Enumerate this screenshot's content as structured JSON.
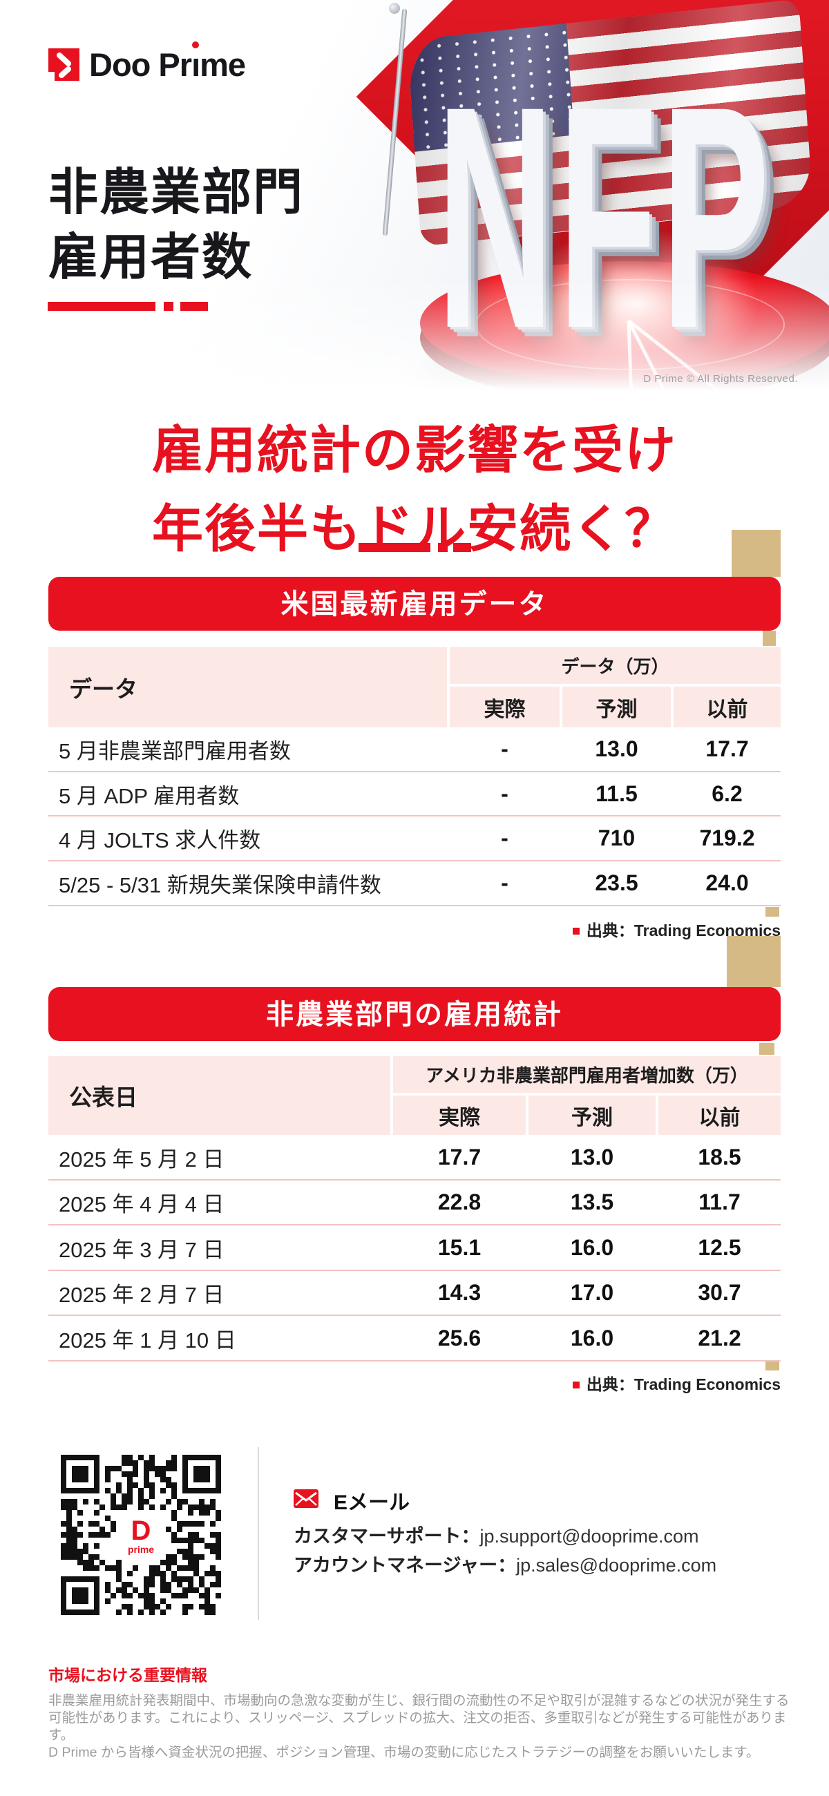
{
  "colors": {
    "accent_red": "#e8111f",
    "gold": "#d6ba85",
    "pink": "#fce8e5"
  },
  "logo": {
    "name": "Doo Prime",
    "text_pre": "Doo Pr",
    "text_i": "ı",
    "text_post": "me"
  },
  "hero": {
    "title_line1": "非農業部門",
    "title_line2": "雇用者数",
    "nfp": "NFP",
    "copyright": "D Prime © All Rights Reserved."
  },
  "headline": {
    "line1": "雇用統計の影響を受け",
    "line2": "年後半もドル安続く？"
  },
  "section1": {
    "banner": "米国最新雇用データ",
    "table": {
      "row_header": "データ",
      "col_group_label": "データ（万）",
      "columns": [
        "実際",
        "予測",
        "以前"
      ],
      "rows": [
        {
          "label": "5 月非農業部門雇用者数",
          "actual": "-",
          "forecast": "13.0",
          "previous": "17.7"
        },
        {
          "label": "5 月 ADP 雇用者数",
          "actual": "-",
          "forecast": "11.5",
          "previous": "6.2"
        },
        {
          "label": "4 月 JOLTS 求人件数",
          "actual": "-",
          "forecast": "710",
          "previous": "719.2"
        },
        {
          "label": "5/25 - 5/31 新規失業保険申請件数",
          "actual": "-",
          "forecast": "23.5",
          "previous": "24.0"
        }
      ]
    },
    "source": "出典：Trading Economics"
  },
  "section2": {
    "banner": "非農業部門の雇用統計",
    "table": {
      "row_header": "公表日",
      "col_group_label": "アメリカ非農業部門雇用者増加数（万）",
      "columns": [
        "実際",
        "予測",
        "以前"
      ],
      "rows": [
        {
          "label": "2025 年 5 月 2 日",
          "actual": "17.7",
          "forecast": "13.0",
          "previous": "18.5"
        },
        {
          "label": "2025 年 4 月 4 日",
          "actual": "22.8",
          "forecast": "13.5",
          "previous": "11.7"
        },
        {
          "label": "2025 年 3 月 7 日",
          "actual": "15.1",
          "forecast": "16.0",
          "previous": "12.5"
        },
        {
          "label": "2025 年 2 月 7 日",
          "actual": "14.3",
          "forecast": "17.0",
          "previous": "30.7"
        },
        {
          "label": "2025 年 1 月 10 日",
          "actual": "25.6",
          "forecast": "16.0",
          "previous": "21.2"
        }
      ]
    },
    "source": "出典：Trading Economics"
  },
  "contact": {
    "email_heading": "Eメール",
    "qr_logo_d": "D",
    "qr_logo_prime": "prime",
    "lines": [
      {
        "label": "カスタマーサポート：",
        "value": "jp.support@dooprime.com"
      },
      {
        "label": "アカウントマネージャー：",
        "value": "jp.sales@dooprime.com"
      }
    ]
  },
  "disclaimer": {
    "heading": "市場における重要情報",
    "lines": [
      "非農業雇用統計発表期間中、市場動向の急激な変動が生じ、銀行間の流動性の不足や取引が混雑するなどの状況が発生する",
      "可能性があります。これにより、スリッページ、スプレッドの拡大、注文の拒否、多重取引などが発生する可能性があります。",
      "D Prime から皆様へ資金状況の把握、ポジション管理、市場の変動に応じたストラテジーの調整をお願いいたします。"
    ]
  }
}
